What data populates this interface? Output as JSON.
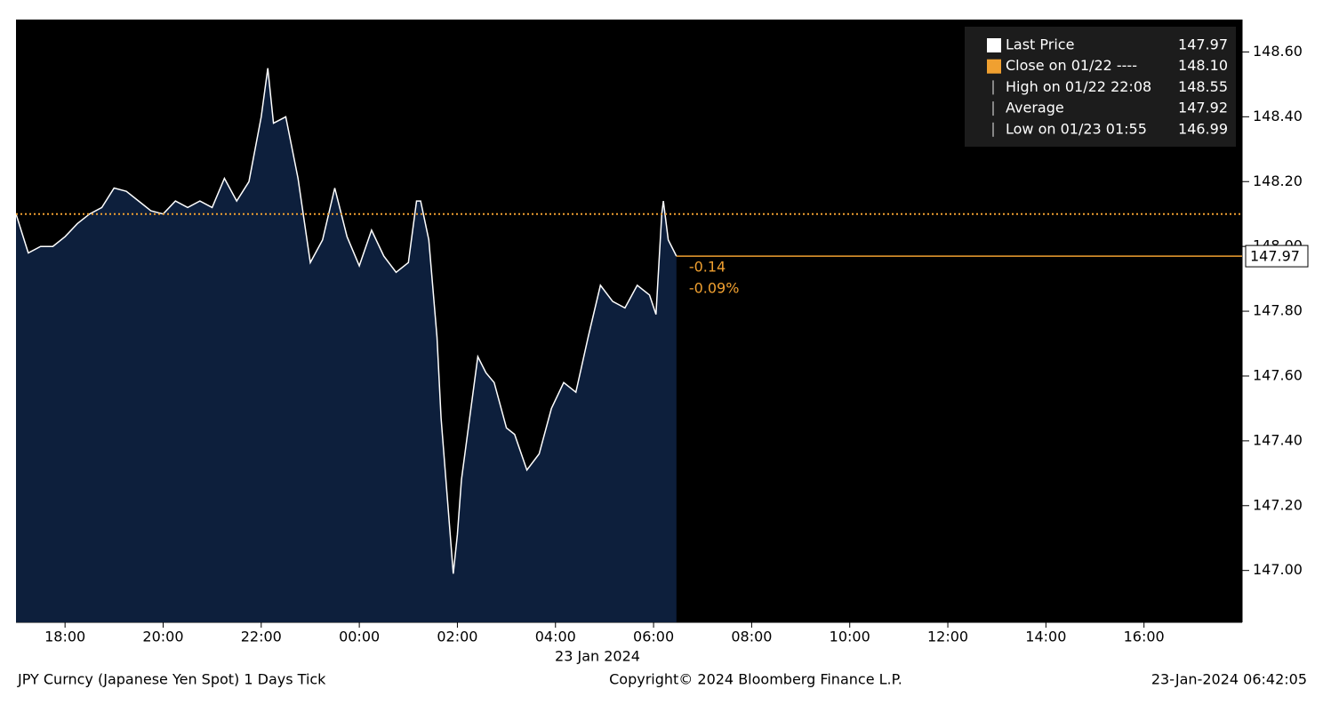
{
  "chart_data": {
    "type": "line",
    "x": [
      "17:00",
      "17:15",
      "17:30",
      "17:45",
      "18:00",
      "18:15",
      "18:30",
      "18:45",
      "19:00",
      "19:15",
      "19:30",
      "19:45",
      "20:00",
      "20:15",
      "20:30",
      "20:45",
      "21:00",
      "21:15",
      "21:30",
      "21:45",
      "22:00",
      "22:08",
      "22:15",
      "22:30",
      "22:45",
      "23:00",
      "23:15",
      "23:30",
      "23:45",
      "00:00",
      "00:15",
      "00:30",
      "00:45",
      "01:00",
      "01:10",
      "01:15",
      "01:25",
      "01:35",
      "01:40",
      "01:55",
      "02:00",
      "02:05",
      "02:15",
      "02:25",
      "02:35",
      "02:45",
      "03:00",
      "03:10",
      "03:25",
      "03:40",
      "03:55",
      "04:10",
      "04:25",
      "04:40",
      "04:55",
      "05:10",
      "05:25",
      "05:40",
      "05:55",
      "06:03",
      "06:10",
      "06:12",
      "06:18",
      "06:28"
    ],
    "series": [
      {
        "name": "Last Price",
        "color": "#ffffff",
        "fill": "#0d1f3c",
        "values": [
          148.1,
          147.98,
          148.0,
          148.0,
          148.03,
          148.07,
          148.1,
          148.12,
          148.18,
          148.17,
          148.14,
          148.11,
          148.1,
          148.14,
          148.12,
          148.14,
          148.12,
          148.21,
          148.14,
          148.2,
          148.4,
          148.55,
          148.38,
          148.4,
          148.21,
          147.95,
          148.02,
          148.18,
          148.03,
          147.94,
          148.05,
          147.97,
          147.92,
          147.95,
          148.14,
          148.14,
          148.02,
          147.72,
          147.47,
          146.99,
          147.11,
          147.28,
          147.47,
          147.66,
          147.61,
          147.58,
          147.44,
          147.42,
          147.31,
          147.36,
          147.5,
          147.58,
          147.55,
          147.72,
          147.88,
          147.83,
          147.81,
          147.88,
          147.85,
          147.79,
          148.1,
          148.14,
          148.02,
          147.97
        ]
      }
    ],
    "close_line": {
      "value": 148.1,
      "color": "#f0a030"
    },
    "last_price": {
      "value": 147.97,
      "label": "147.97",
      "color": "#f0a030"
    },
    "annotations": [
      "-0.14",
      "-0.09%"
    ],
    "xlim": [
      "17:00",
      "18:00"
    ],
    "xticks": [
      "18:00",
      "20:00",
      "22:00",
      "00:00",
      "02:00",
      "04:00",
      "06:00",
      "08:00",
      "10:00",
      "12:00",
      "14:00",
      "16:00"
    ],
    "x_date_label": "23 Jan 2024",
    "ylim": [
      146.84,
      148.7
    ],
    "yticks": [
      {
        "value": 147.0,
        "label": "147.00"
      },
      {
        "value": 147.2,
        "label": "147.20"
      },
      {
        "value": 147.4,
        "label": "147.40"
      },
      {
        "value": 147.6,
        "label": "147.60"
      },
      {
        "value": 147.8,
        "label": "147.80"
      },
      {
        "value": 148.0,
        "label": "148.00"
      },
      {
        "value": 148.2,
        "label": "148.20"
      },
      {
        "value": 148.4,
        "label": "148.40"
      },
      {
        "value": 148.6,
        "label": "148.60"
      }
    ],
    "legend": [
      {
        "label": "Last Price",
        "value": "147.97",
        "color": "#ffffff"
      },
      {
        "label": "Close on 01/22 ----",
        "value": "148.10",
        "color": "#f0a030"
      },
      {
        "label": "High on 01/22 22:08",
        "value": "148.55",
        "color": "#aaaaaa"
      },
      {
        "label": "Average",
        "value": "147.92",
        "color": "#aaaaaa"
      },
      {
        "label": "Low on 01/23 01:55",
        "value": "146.99",
        "color": "#aaaaaa"
      }
    ],
    "footer": {
      "left": "JPY Curncy (Japanese Yen Spot) 1 Days  Tick",
      "center": "Copyright© 2024 Bloomberg Finance L.P.",
      "right": "23-Jan-2024 06:42:05"
    }
  }
}
